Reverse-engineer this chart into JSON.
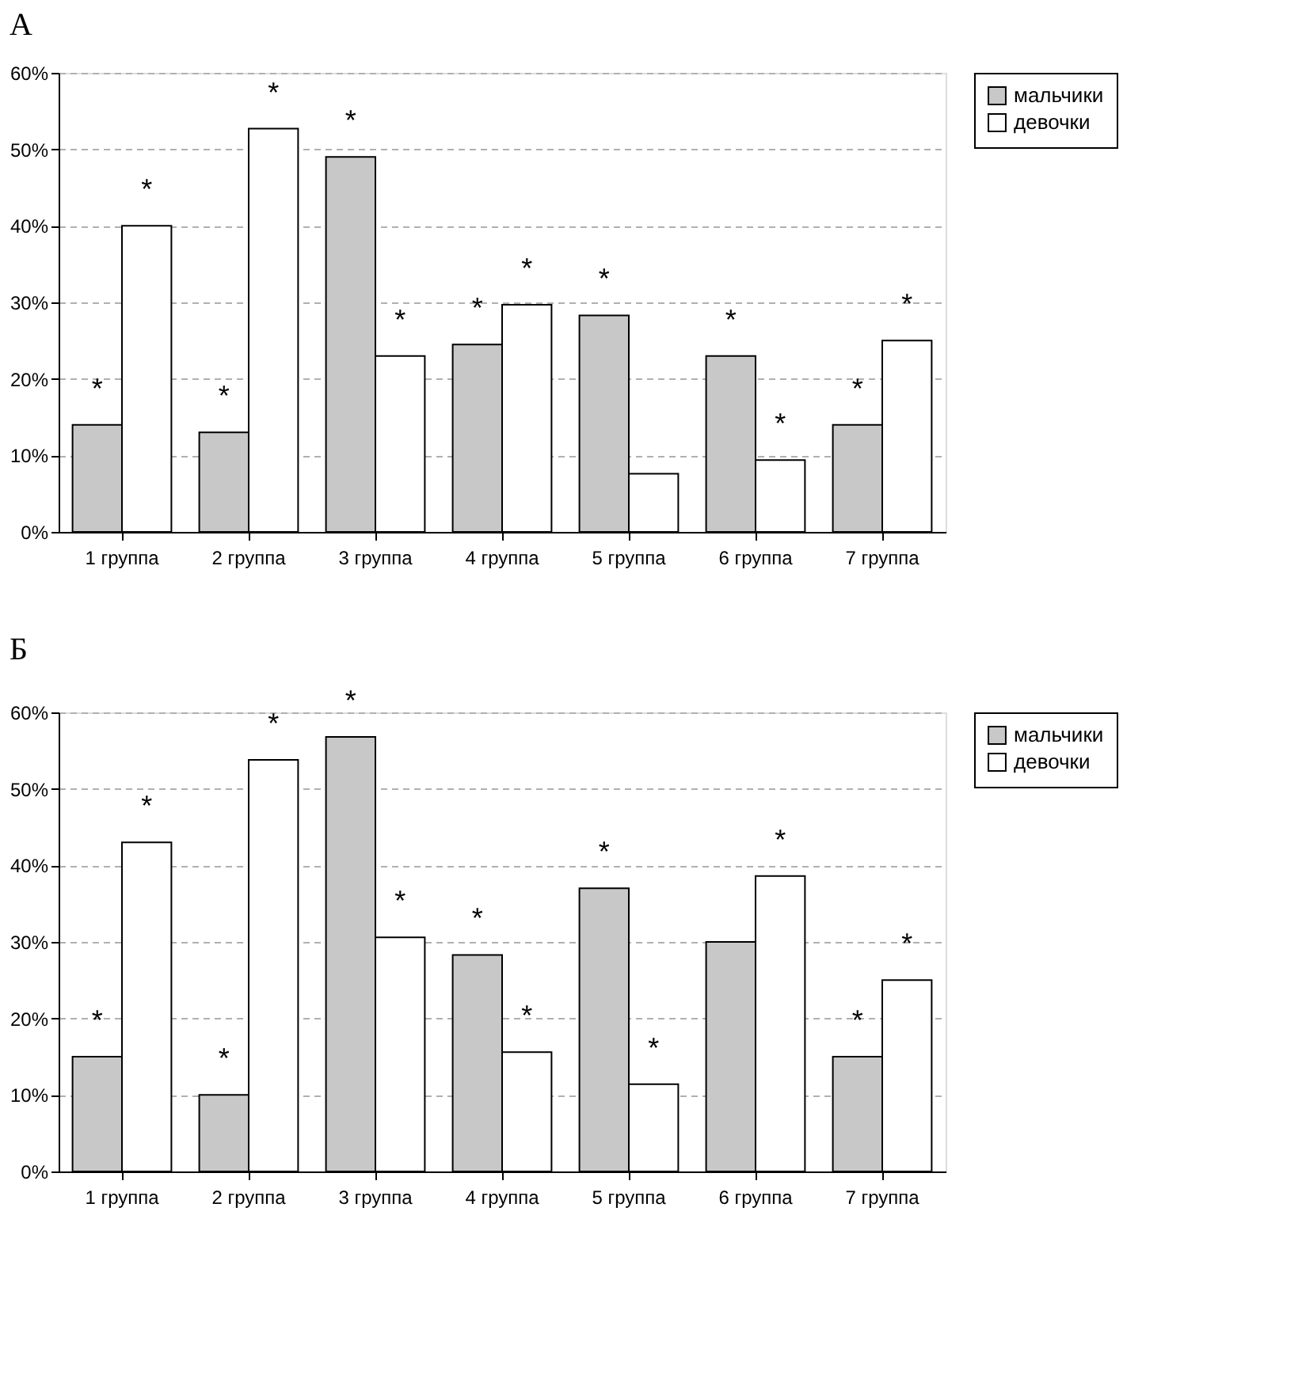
{
  "chart_data": [
    {
      "type": "bar",
      "title": "А",
      "categories": [
        "1 группа",
        "2 группа",
        "3 группа",
        "4 группа",
        "5 группа",
        "6 группа",
        "7 группа"
      ],
      "series": [
        {
          "name": "мальчики",
          "color": "#c8c8c8",
          "values": [
            14,
            13,
            49,
            24.5,
            28.3,
            23,
            14
          ]
        },
        {
          "name": "девочки",
          "color": "#ffffff",
          "values": [
            40,
            52.7,
            23,
            29.7,
            7.6,
            9.4,
            25
          ]
        }
      ],
      "ylim": [
        0,
        60
      ],
      "yticks": [
        {
          "value": 0,
          "label": "0%"
        },
        {
          "value": 10,
          "label": "10%"
        },
        {
          "value": 20,
          "label": "20%"
        },
        {
          "value": 30,
          "label": "30%"
        },
        {
          "value": 40,
          "label": "40%"
        },
        {
          "value": 50,
          "label": "50%"
        },
        {
          "value": 60,
          "label": "60%"
        }
      ],
      "grid": "y",
      "legend": "right",
      "annotations": [
        {
          "text": "*",
          "x": "1 группа",
          "y": 14
        },
        {
          "text": "*",
          "x": "1 группа",
          "y": 40
        },
        {
          "text": "*",
          "x": "2 группа",
          "y": 13
        },
        {
          "text": "*",
          "x": "2 группа",
          "y": 52.7
        },
        {
          "text": "*",
          "x": "3 группа",
          "y": 49
        },
        {
          "text": "*",
          "x": "3 группа",
          "y": 23
        },
        {
          "text": "*",
          "x": "4 группа",
          "y": 24.5
        },
        {
          "text": "*",
          "x": "4 группа",
          "y": 29.7
        },
        {
          "text": "*",
          "x": "5 группа",
          "y": 28.3
        },
        {
          "text": "*",
          "x": "6 группа",
          "y": 23
        },
        {
          "text": "*",
          "x": "6 группа",
          "y": 9.4
        },
        {
          "text": "*",
          "x": "7 группа",
          "y": 14
        },
        {
          "text": "*",
          "x": "7 группа",
          "y": 25
        }
      ]
    },
    {
      "type": "bar",
      "title": "Б",
      "categories": [
        "1 группа",
        "2 группа",
        "3 группа",
        "4 группа",
        "5 группа",
        "6 группа",
        "7 группа"
      ],
      "series": [
        {
          "name": "мальчики",
          "color": "#c8c8c8",
          "values": [
            15,
            10,
            56.8,
            28.3,
            37,
            30,
            15
          ]
        },
        {
          "name": "девочки",
          "color": "#ffffff",
          "values": [
            43,
            53.8,
            30.6,
            15.6,
            11.4,
            38.6,
            25
          ]
        }
      ],
      "ylim": [
        0,
        60
      ],
      "yticks": [
        {
          "value": 0,
          "label": "0%"
        },
        {
          "value": 10,
          "label": "10%"
        },
        {
          "value": 20,
          "label": "20%"
        },
        {
          "value": 30,
          "label": "30%"
        },
        {
          "value": 40,
          "label": "40%"
        },
        {
          "value": 50,
          "label": "50%"
        },
        {
          "value": 60,
          "label": "60%"
        }
      ],
      "grid": "y",
      "legend": "right",
      "annotations": [
        {
          "text": "*",
          "x": "1 группа",
          "y": 15
        },
        {
          "text": "*",
          "x": "1 группа",
          "y": 43
        },
        {
          "text": "*",
          "x": "2 группа",
          "y": 10
        },
        {
          "text": "*",
          "x": "2 группа",
          "y": 53.8
        },
        {
          "text": "*",
          "x": "3 группа",
          "y": 56.8
        },
        {
          "text": "*",
          "x": "3 группа",
          "y": 30.6
        },
        {
          "text": "*",
          "x": "4 группа",
          "y": 28.3
        },
        {
          "text": "*",
          "x": "4 группа",
          "y": 15.6
        },
        {
          "text": "*",
          "x": "5 группа",
          "y": 37
        },
        {
          "text": "*",
          "x": "5 группа",
          "y": 11.4
        },
        {
          "text": "*",
          "x": "6 группа",
          "y": 38.6
        },
        {
          "text": "*",
          "x": "7 группа",
          "y": 15
        },
        {
          "text": "*",
          "x": "7 группа",
          "y": 25
        }
      ]
    }
  ]
}
